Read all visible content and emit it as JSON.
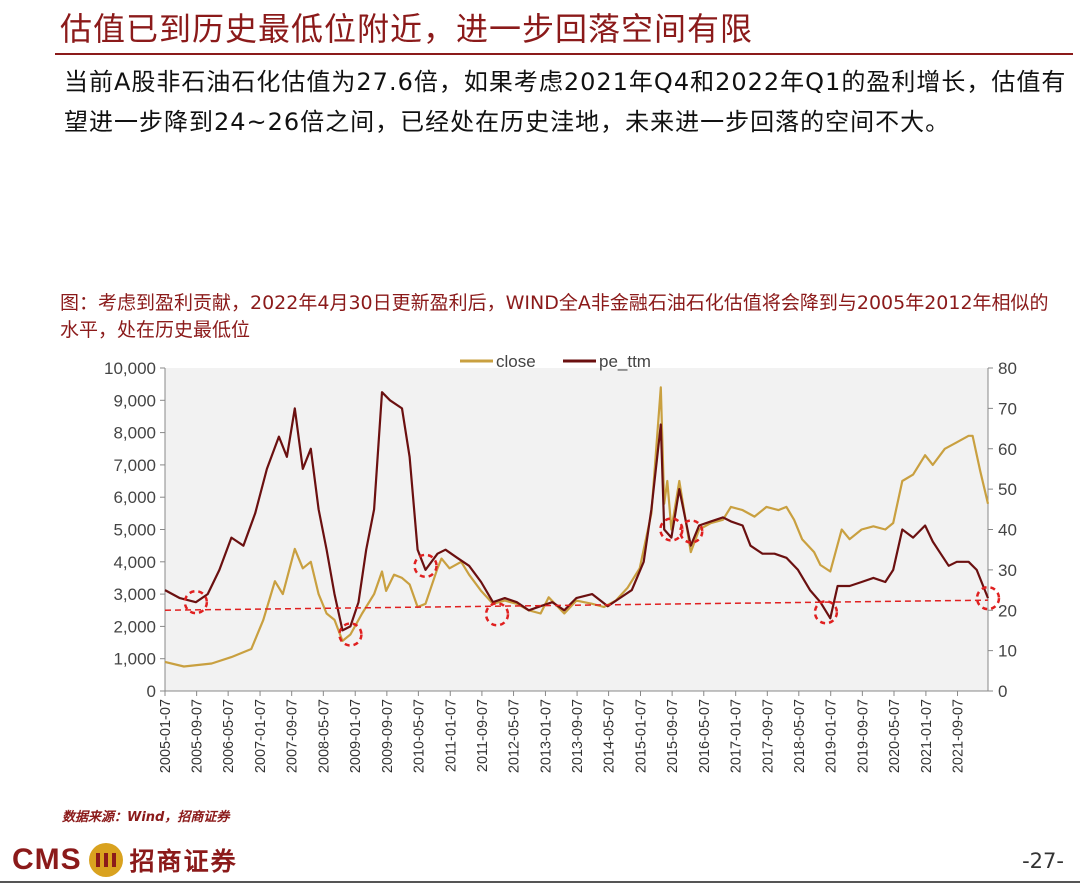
{
  "page": {
    "title": "估值已到历史最低位附近，进一步回落空间有限",
    "lead": "当前A股非石油石化估值为27.6倍，如果考虑2021年Q4和2022年Q1的盈利增长，估值有望进一步降到24~26倍之间，已经处在历史洼地，未来进一步回落的空间不大。",
    "source": "数据来源：Wind，招商证券",
    "page_number": "-27-",
    "logo": {
      "latin": "CMS",
      "chinese": "招商证券",
      "badge_icon": "cms-badge-icon"
    }
  },
  "chart_data": {
    "type": "line",
    "title": "图：考虑到盈利贡献，2022年4月30日更新盈利后，WIND全A非金融石油石化估值将会降到与2005年2012年相似的水平，处在历史最低位",
    "x_tick_labels": [
      "2005-01-07",
      "2005-09-07",
      "2006-05-07",
      "2007-01-07",
      "2007-09-07",
      "2008-05-07",
      "2009-01-07",
      "2009-09-07",
      "2010-05-07",
      "2011-01-07",
      "2011-09-07",
      "2012-05-07",
      "2013-01-07",
      "2013-09-07",
      "2014-05-07",
      "2015-01-07",
      "2015-09-07",
      "2016-05-07",
      "2017-01-07",
      "2017-09-07",
      "2018-05-07",
      "2019-01-07",
      "2019-09-07",
      "2020-05-07",
      "2021-01-07",
      "2021-09-07"
    ],
    "x_range": [
      "2005-01-07",
      "2022-04-29"
    ],
    "y_left": {
      "min": 0,
      "max": 10000,
      "step": 1000,
      "tick_labels": [
        "0",
        "1,000",
        "2,000",
        "3,000",
        "4,000",
        "5,000",
        "6,000",
        "7,000",
        "8,000",
        "9,000",
        "10,000"
      ]
    },
    "y_right": {
      "min": 0,
      "max": 80,
      "step": 10,
      "tick_labels": [
        "0",
        "10",
        "20",
        "30",
        "40",
        "50",
        "60",
        "70",
        "80"
      ]
    },
    "legend": {
      "position": "top-center"
    },
    "series": [
      {
        "name": "close",
        "axis": "left",
        "color": "#c9a040",
        "points": [
          [
            "2005-01-07",
            900
          ],
          [
            "2005-06-01",
            760
          ],
          [
            "2006-01-01",
            850
          ],
          [
            "2006-06-01",
            1050
          ],
          [
            "2006-11-01",
            1300
          ],
          [
            "2007-02-01",
            2200
          ],
          [
            "2007-05-01",
            3400
          ],
          [
            "2007-07-01",
            3000
          ],
          [
            "2007-10-01",
            4400
          ],
          [
            "2007-12-01",
            3800
          ],
          [
            "2008-02-01",
            4000
          ],
          [
            "2008-04-01",
            3000
          ],
          [
            "2008-06-01",
            2400
          ],
          [
            "2008-08-01",
            2200
          ],
          [
            "2008-10-01",
            1550
          ],
          [
            "2008-12-01",
            1750
          ],
          [
            "2009-03-01",
            2400
          ],
          [
            "2009-06-01",
            3000
          ],
          [
            "2009-08-01",
            3700
          ],
          [
            "2009-09-01",
            3100
          ],
          [
            "2009-11-01",
            3600
          ],
          [
            "2010-01-01",
            3500
          ],
          [
            "2010-03-01",
            3300
          ],
          [
            "2010-05-01",
            2600
          ],
          [
            "2010-07-01",
            2700
          ],
          [
            "2010-10-01",
            3800
          ],
          [
            "2010-11-01",
            4100
          ],
          [
            "2011-01-01",
            3800
          ],
          [
            "2011-04-01",
            4000
          ],
          [
            "2011-06-01",
            3600
          ],
          [
            "2011-09-01",
            3100
          ],
          [
            "2011-12-01",
            2700
          ],
          [
            "2012-03-01",
            2800
          ],
          [
            "2012-06-01",
            2700
          ],
          [
            "2012-09-01",
            2500
          ],
          [
            "2012-12-01",
            2400
          ],
          [
            "2013-02-01",
            2900
          ],
          [
            "2013-06-01",
            2400
          ],
          [
            "2013-09-01",
            2800
          ],
          [
            "2014-01-01",
            2700
          ],
          [
            "2014-04-01",
            2600
          ],
          [
            "2014-07-01",
            2800
          ],
          [
            "2014-10-01",
            3200
          ],
          [
            "2015-01-01",
            3800
          ],
          [
            "2015-04-01",
            5500
          ],
          [
            "2015-06-12",
            9400
          ],
          [
            "2015-07-08",
            5800
          ],
          [
            "2015-08-01",
            6500
          ],
          [
            "2015-09-01",
            5000
          ],
          [
            "2015-11-01",
            6500
          ],
          [
            "2016-01-28",
            4300
          ],
          [
            "2016-04-01",
            5000
          ],
          [
            "2016-07-01",
            5200
          ],
          [
            "2016-10-01",
            5300
          ],
          [
            "2016-12-01",
            5700
          ],
          [
            "2017-03-01",
            5600
          ],
          [
            "2017-06-01",
            5400
          ],
          [
            "2017-09-01",
            5700
          ],
          [
            "2017-12-01",
            5600
          ],
          [
            "2018-02-01",
            5700
          ],
          [
            "2018-04-01",
            5300
          ],
          [
            "2018-06-01",
            4700
          ],
          [
            "2018-09-01",
            4300
          ],
          [
            "2018-10-20",
            3900
          ],
          [
            "2019-01-04",
            3700
          ],
          [
            "2019-04-01",
            5000
          ],
          [
            "2019-06-01",
            4700
          ],
          [
            "2019-09-01",
            5000
          ],
          [
            "2019-12-01",
            5100
          ],
          [
            "2020-03-01",
            5000
          ],
          [
            "2020-05-01",
            5200
          ],
          [
            "2020-07-10",
            6500
          ],
          [
            "2020-10-01",
            6700
          ],
          [
            "2021-01-01",
            7300
          ],
          [
            "2021-03-01",
            7000
          ],
          [
            "2021-06-01",
            7500
          ],
          [
            "2021-09-01",
            7700
          ],
          [
            "2021-12-01",
            7900
          ],
          [
            "2022-01-01",
            7900
          ],
          [
            "2022-03-01",
            6800
          ],
          [
            "2022-04-29",
            5800
          ]
        ]
      },
      {
        "name": "pe_ttm",
        "axis": "right",
        "color": "#6b1010",
        "points": [
          [
            "2005-01-07",
            25
          ],
          [
            "2005-05-01",
            23
          ],
          [
            "2005-09-01",
            22
          ],
          [
            "2005-12-01",
            24
          ],
          [
            "2006-03-01",
            30
          ],
          [
            "2006-06-01",
            38
          ],
          [
            "2006-09-01",
            36
          ],
          [
            "2006-12-01",
            44
          ],
          [
            "2007-03-01",
            55
          ],
          [
            "2007-06-01",
            63
          ],
          [
            "2007-08-01",
            58
          ],
          [
            "2007-10-01",
            70
          ],
          [
            "2007-12-01",
            55
          ],
          [
            "2008-02-01",
            60
          ],
          [
            "2008-04-01",
            45
          ],
          [
            "2008-06-01",
            35
          ],
          [
            "2008-08-01",
            24
          ],
          [
            "2008-10-01",
            15
          ],
          [
            "2008-12-01",
            16
          ],
          [
            "2009-02-01",
            22
          ],
          [
            "2009-04-01",
            35
          ],
          [
            "2009-06-01",
            45
          ],
          [
            "2009-08-01",
            74
          ],
          [
            "2009-10-01",
            72
          ],
          [
            "2010-01-01",
            70
          ],
          [
            "2010-03-01",
            58
          ],
          [
            "2010-05-01",
            35
          ],
          [
            "2010-07-01",
            30
          ],
          [
            "2010-10-01",
            34
          ],
          [
            "2010-12-01",
            35
          ],
          [
            "2011-03-01",
            33
          ],
          [
            "2011-06-01",
            31
          ],
          [
            "2011-09-01",
            27
          ],
          [
            "2011-12-01",
            22
          ],
          [
            "2012-03-01",
            23
          ],
          [
            "2012-06-01",
            22
          ],
          [
            "2012-09-01",
            20
          ],
          [
            "2012-12-01",
            21
          ],
          [
            "2013-03-01",
            22
          ],
          [
            "2013-06-01",
            20
          ],
          [
            "2013-09-01",
            23
          ],
          [
            "2014-01-01",
            24
          ],
          [
            "2014-05-01",
            21
          ],
          [
            "2014-08-01",
            23
          ],
          [
            "2014-11-01",
            25
          ],
          [
            "2015-02-01",
            32
          ],
          [
            "2015-04-01",
            45
          ],
          [
            "2015-06-12",
            66
          ],
          [
            "2015-07-08",
            40
          ],
          [
            "2015-09-01",
            38
          ],
          [
            "2015-11-01",
            50
          ],
          [
            "2016-01-28",
            36
          ],
          [
            "2016-04-01",
            41
          ],
          [
            "2016-07-01",
            42
          ],
          [
            "2016-10-01",
            43
          ],
          [
            "2016-12-01",
            42
          ],
          [
            "2017-03-01",
            41
          ],
          [
            "2017-05-01",
            36
          ],
          [
            "2017-08-01",
            34
          ],
          [
            "2017-11-01",
            34
          ],
          [
            "2018-02-01",
            33
          ],
          [
            "2018-05-01",
            30
          ],
          [
            "2018-08-01",
            25
          ],
          [
            "2018-10-20",
            22
          ],
          [
            "2019-01-04",
            18
          ],
          [
            "2019-03-01",
            26
          ],
          [
            "2019-06-01",
            26
          ],
          [
            "2019-09-01",
            27
          ],
          [
            "2019-12-01",
            28
          ],
          [
            "2020-03-01",
            27
          ],
          [
            "2020-05-01",
            30
          ],
          [
            "2020-07-10",
            40
          ],
          [
            "2020-10-01",
            38
          ],
          [
            "2021-01-01",
            41
          ],
          [
            "2021-03-01",
            37
          ],
          [
            "2021-05-01",
            34
          ],
          [
            "2021-07-01",
            31
          ],
          [
            "2021-09-01",
            32
          ],
          [
            "2021-12-01",
            32
          ],
          [
            "2022-02-01",
            30
          ],
          [
            "2022-04-29",
            23
          ]
        ]
      }
    ],
    "reference_line": {
      "axis": "right",
      "color": "#e02020",
      "style": "dashed",
      "points": [
        [
          "2005-01-07",
          20
        ],
        [
          "2022-04-29",
          22.5
        ]
      ]
    },
    "highlight_circles": {
      "axis": "right",
      "color": "#e02020",
      "style": "dashed",
      "points": [
        [
          "2005-09-01",
          22
        ],
        [
          "2008-12-01",
          14
        ],
        [
          "2010-07-01",
          31
        ],
        [
          "2012-01-01",
          19
        ],
        [
          "2015-09-01",
          40
        ],
        [
          "2016-02-01",
          39.5
        ],
        [
          "2018-12-01",
          19.5
        ],
        [
          "2022-04-29",
          23
        ]
      ]
    }
  }
}
